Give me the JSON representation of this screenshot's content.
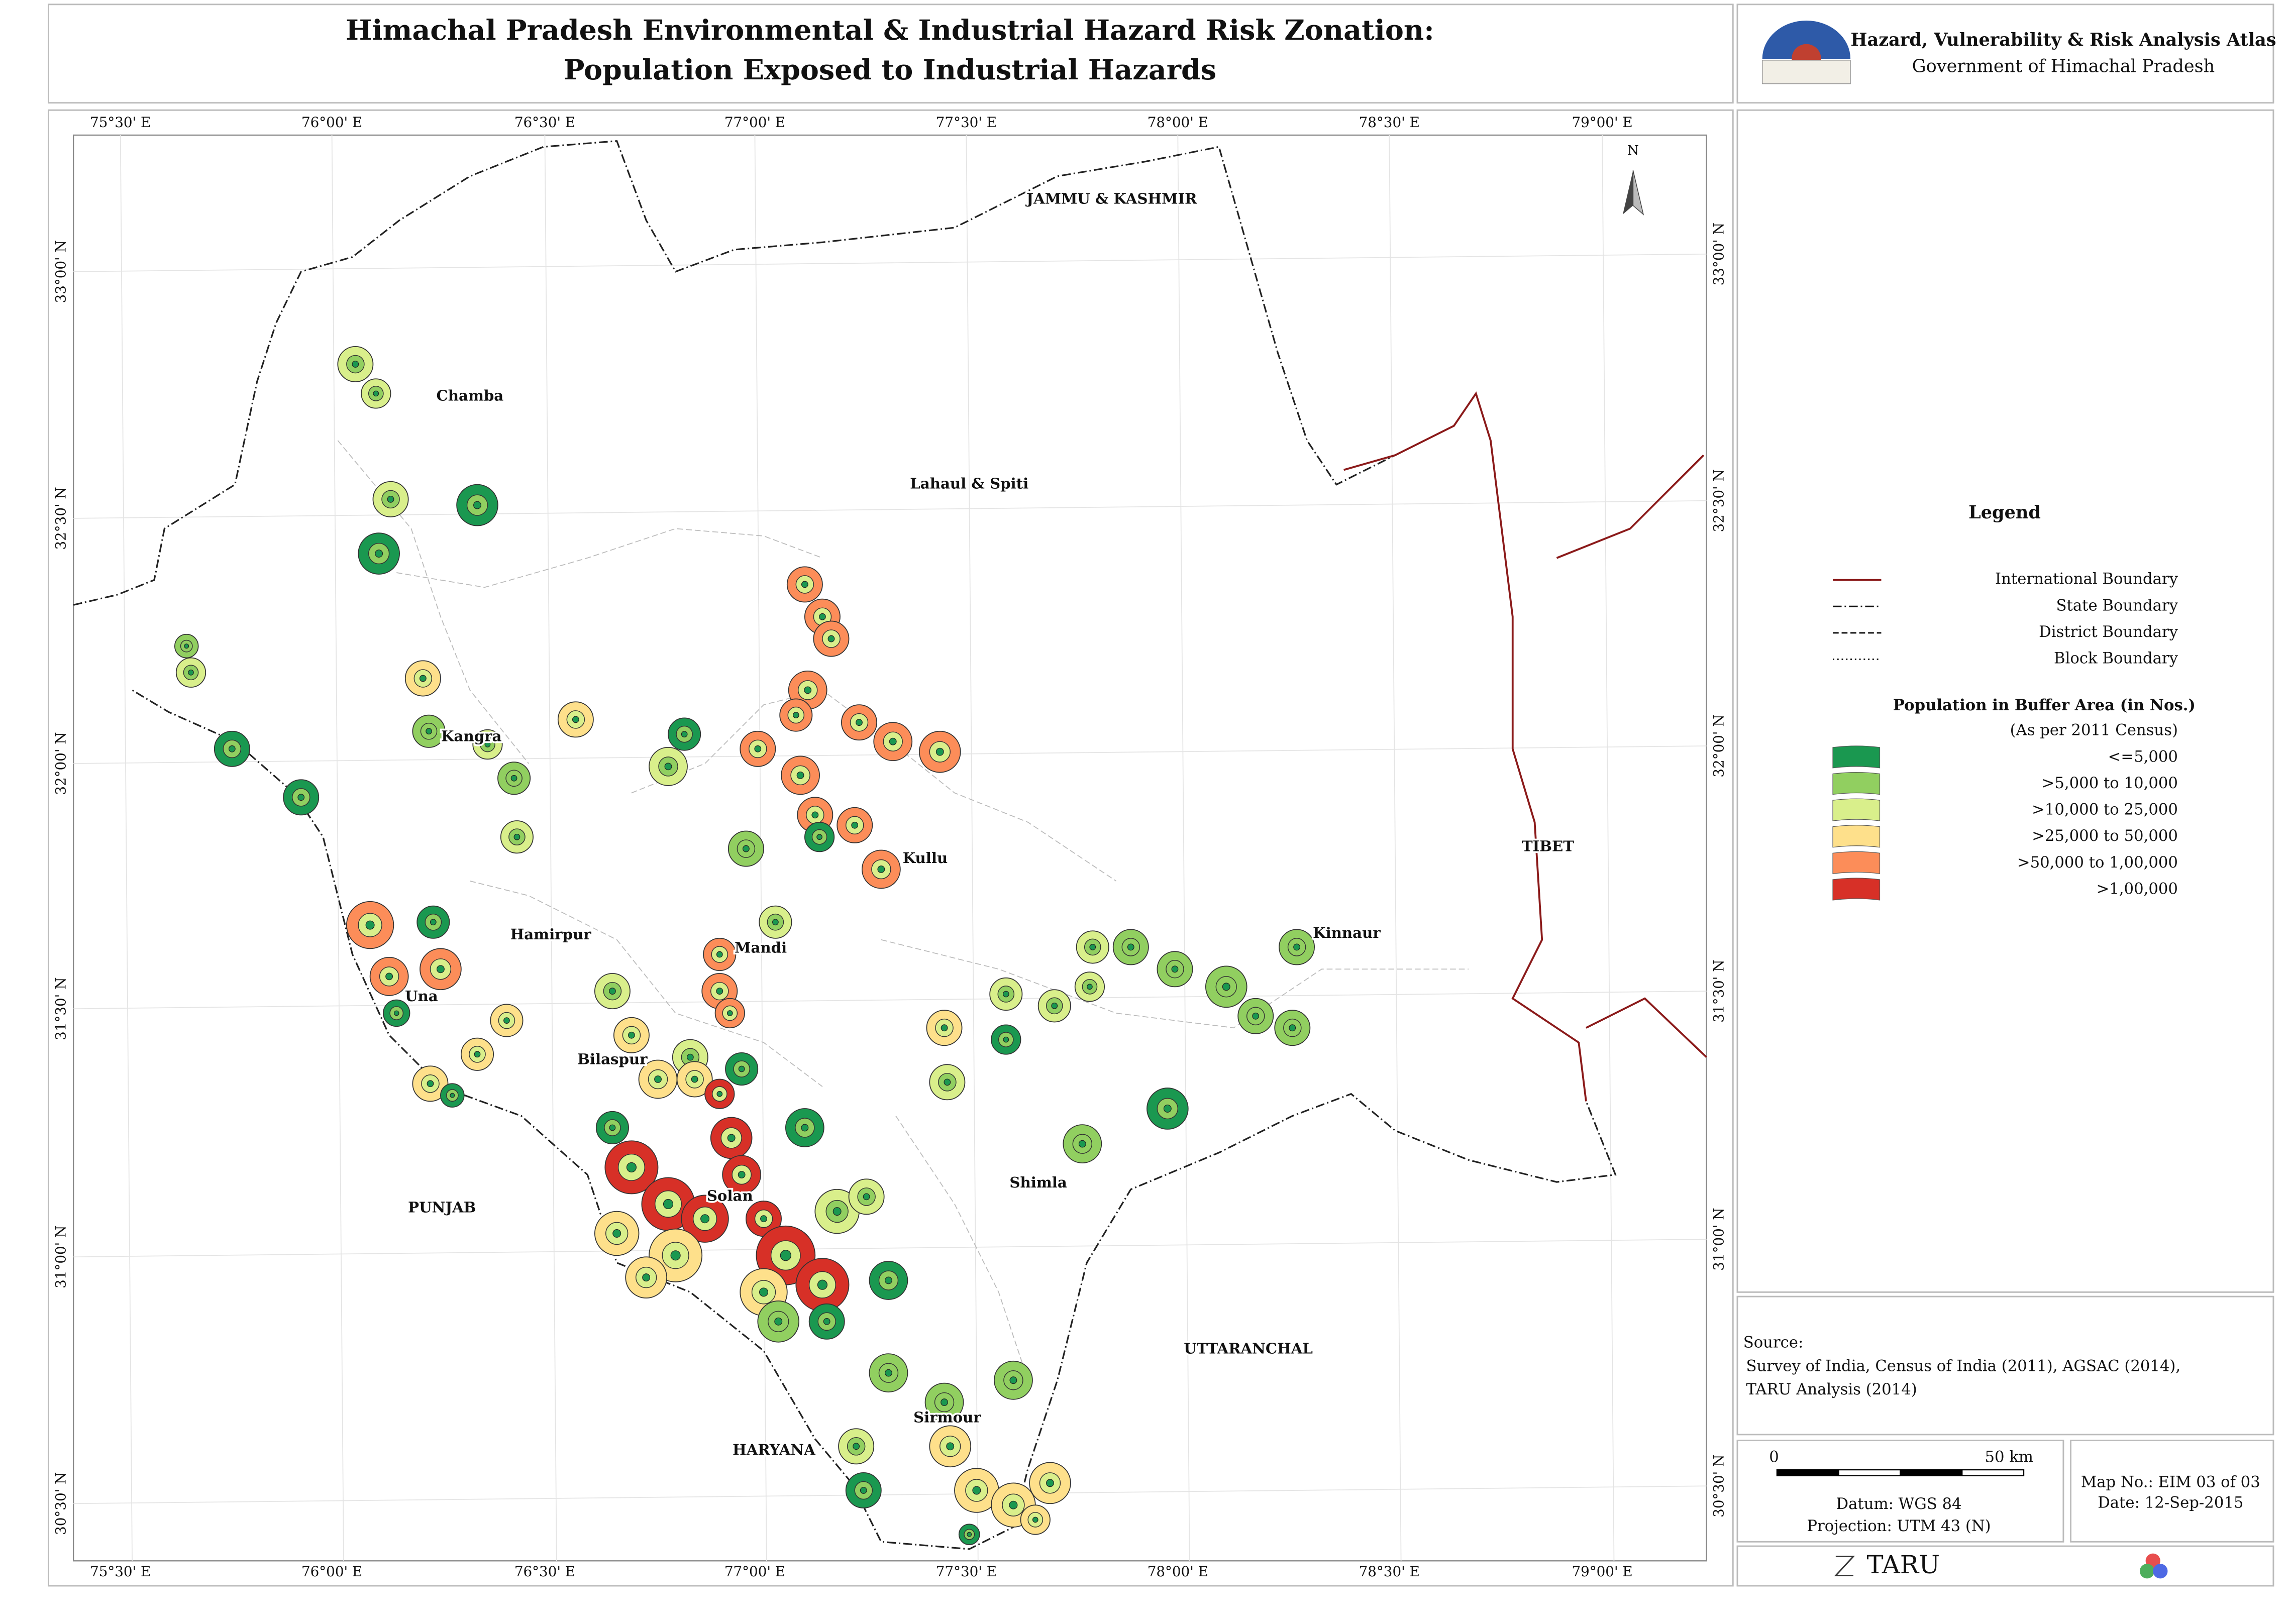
{
  "header": {
    "title_line1": "Himachal Pradesh Environmental & Industrial Hazard Risk Zonation:",
    "title_line2": "Population Exposed to Industrial Hazards",
    "atlas": "Hazard, Vulnerability & Risk Analysis Atlas",
    "government": "Government of Himachal Pradesh"
  },
  "map": {
    "longitudes": [
      "75°30' E",
      "76°00' E",
      "76°30' E",
      "77°00' E",
      "77°30' E",
      "78°00' E",
      "78°30' E",
      "79°00' E"
    ],
    "latitudes": [
      "33°00' N",
      "32°30' N",
      "32°00' N",
      "31°30' N",
      "31°00' N",
      "30°30' N"
    ],
    "north": "N",
    "places": [
      "JAMMU & KASHMIR",
      "Chamba",
      "Lahaul & Spiti",
      "Kangra",
      "Kullu",
      "Hamirpur",
      "Mandi",
      "Kinnaur",
      "Una",
      "Bilaspur",
      "TIBET",
      "Solan",
      "Shimla",
      "PUNJAB",
      "UTTARANCHAL",
      "Sirmour",
      "HARYANA"
    ]
  },
  "legend": {
    "title": "Legend",
    "boundaries": [
      "International Boundary",
      "State Boundary",
      "District Boundary",
      "Block Boundary"
    ],
    "population_title": "Population in Buffer Area (in Nos.)",
    "population_subtitle": "(As per 2011 Census)",
    "classes": [
      {
        "label": "<=5,000",
        "color": "#1a9850"
      },
      {
        "label": ">5,000 to 10,000",
        "color": "#91cf60"
      },
      {
        "label": ">10,000 to 25,000",
        "color": "#d9ef8b"
      },
      {
        "label": ">25,000 to 50,000",
        "color": "#fee08b"
      },
      {
        "label": ">50,000 to 1,00,000",
        "color": "#fc8d59"
      },
      {
        "label": ">1,00,000",
        "color": "#d73027"
      }
    ]
  },
  "source": {
    "heading": "Source:",
    "lines": [
      "Survey of India, Census of India (2011), AGSAC (2014),",
      "TARU Analysis (2014)"
    ]
  },
  "scale": {
    "start": "0",
    "end": "50 km",
    "datum": "Datum: WGS 84",
    "projection": "Projection: UTM 43 (N)"
  },
  "map_info": {
    "map_no": "Map No.: EIM 03 of 03",
    "date": "Date: 12-Sep-2015"
  },
  "logo": "TARU"
}
